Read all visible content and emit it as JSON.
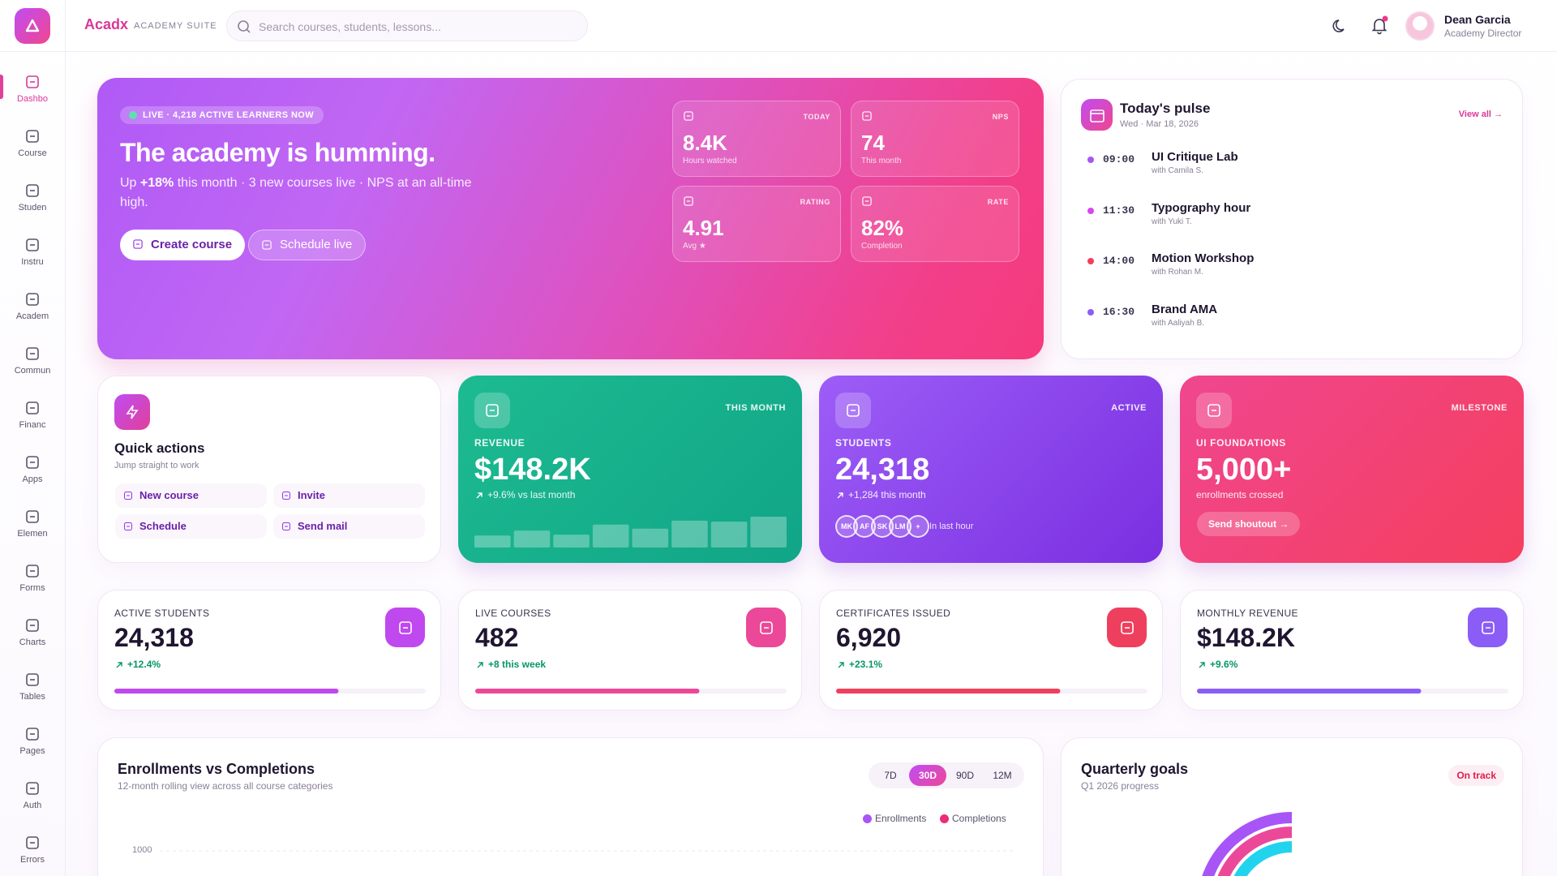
{
  "brand": {
    "name": "Acadx",
    "suite": "ACADEMY SUITE"
  },
  "search_placeholder": "Search courses, students, lessons...",
  "user": {
    "name": "Dean Garcia",
    "role": "Academy Director"
  },
  "nav": [
    "Dashbo",
    "Course",
    "Studen",
    "Instru",
    "Academ",
    "Commun",
    "Financ",
    "Apps",
    "Elemen",
    "Forms",
    "Charts",
    "Tables",
    "Pages",
    "Auth",
    "Errors"
  ],
  "hero": {
    "badge": "LIVE · 4,218 ACTIVE LEARNERS NOW",
    "title": "The academy is humming.",
    "subtitle_parts": [
      "Up ",
      "+18%",
      " this month · 3 new courses live · NPS at an all-time high."
    ],
    "buttons": [
      "Create course",
      "Schedule live"
    ],
    "stats": [
      {
        "label": "TODAY",
        "value": "8.4K",
        "caption": "Hours watched"
      },
      {
        "label": "NPS",
        "value": "74",
        "caption": "This month"
      },
      {
        "label": "RATING",
        "value": "4.91",
        "caption": "Avg ★"
      },
      {
        "label": "RATE",
        "value": "82%",
        "caption": "Completion"
      }
    ]
  },
  "pulse": {
    "title": "Today's pulse",
    "date": "Wed · Mar 18, 2026",
    "view_all": "View all →",
    "events": [
      {
        "time": "09:00",
        "title": "UI Critique Lab",
        "host": "with Camila S.",
        "color": "#a855f7"
      },
      {
        "time": "11:30",
        "title": "Typography hour",
        "host": "with Yuki T.",
        "color": "#d946ef"
      },
      {
        "time": "14:00",
        "title": "Motion Workshop",
        "host": "with Rohan M.",
        "color": "#f43f5e"
      },
      {
        "time": "16:30",
        "title": "Brand AMA",
        "host": "with Aaliyah B.",
        "color": "#8b5cf6"
      }
    ]
  },
  "quick_actions": {
    "title": "Quick actions",
    "subtitle": "Jump straight to work",
    "actions": [
      "New course",
      "Invite",
      "Schedule",
      "Send mail"
    ]
  },
  "revenue_card": {
    "tag": "THIS MONTH",
    "label": "REVENUE",
    "value": "$148.2K",
    "delta": "+9.6% vs last month",
    "bars": [
      12,
      17,
      13,
      23,
      19,
      27,
      26,
      31
    ]
  },
  "students_card": {
    "tag": "ACTIVE",
    "label": "STUDENTS",
    "value": "24,318",
    "delta": "+1,284 this month",
    "avatars": [
      "MK",
      "AF",
      "SK",
      "LM",
      "+"
    ],
    "avatars_caption": "In last hour"
  },
  "milestone_card": {
    "tag": "MILESTONE",
    "label": "UI FOUNDATIONS",
    "value": "5,000+",
    "caption": "enrollments crossed",
    "button": "Send shoutout →"
  },
  "kpis": [
    {
      "label": "ACTIVE STUDENTS",
      "value": "24,318",
      "delta": "+12.4%",
      "progress": 72,
      "color": "#c048ef"
    },
    {
      "label": "LIVE COURSES",
      "value": "482",
      "delta": "+8 this week",
      "progress": 72,
      "color": "#ec4899"
    },
    {
      "label": "CERTIFICATES ISSUED",
      "value": "6,920",
      "delta": "+23.1%",
      "progress": 72,
      "color": "#ef3f5e"
    },
    {
      "label": "MONTHLY REVENUE",
      "value": "$148.2K",
      "delta": "+9.6%",
      "progress": 72,
      "color": "#8b5cf6"
    }
  ],
  "enrollments_chart": {
    "title": "Enrollments vs Completions",
    "subtitle": "12-month rolling view across all course categories",
    "ranges": [
      "7D",
      "30D",
      "90D",
      "12M"
    ],
    "active_range": 1,
    "series": [
      {
        "name": "Enrollments",
        "color": "#a855f7"
      },
      {
        "name": "Completions",
        "color": "#ec2c78"
      }
    ],
    "yticks": [
      1000
    ]
  },
  "goals": {
    "title": "Quarterly goals",
    "subtitle": "Q1 2026 progress",
    "status": "On track"
  }
}
